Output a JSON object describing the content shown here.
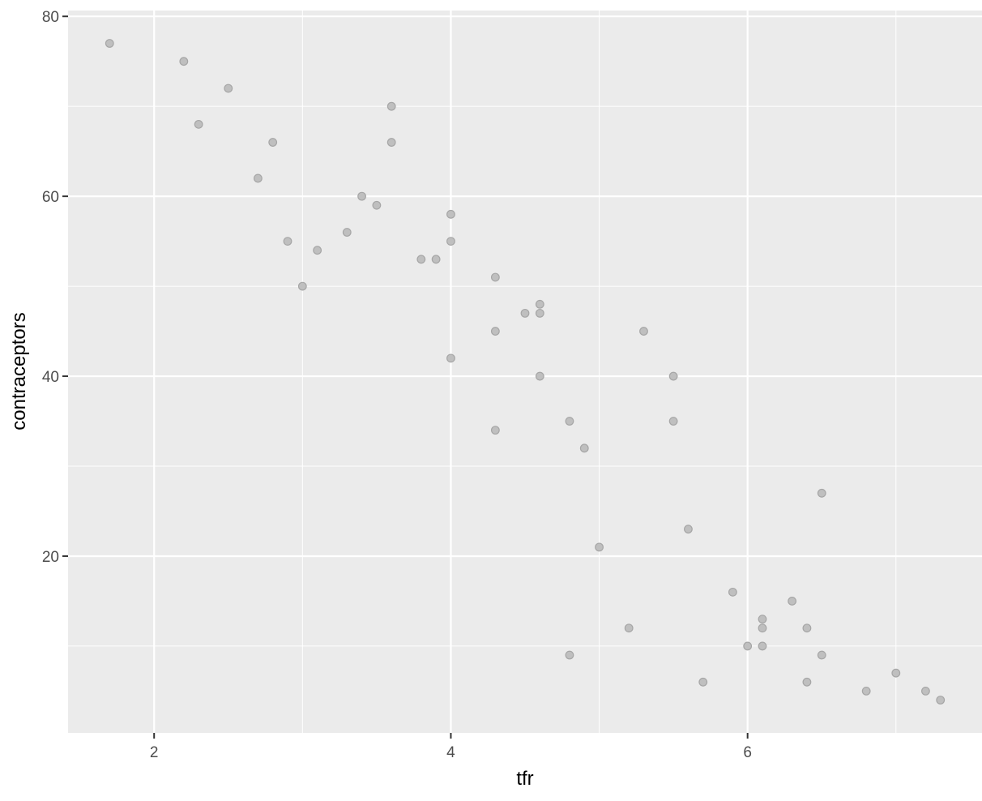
{
  "chart_data": {
    "type": "scatter",
    "title": "",
    "xlabel": "tfr",
    "ylabel": "contraceptors",
    "xlim": [
      1.42,
      7.58
    ],
    "ylim": [
      0.35,
      80.65
    ],
    "x_ticks": [
      2,
      4,
      6
    ],
    "y_ticks": [
      20,
      40,
      60,
      80
    ],
    "x_tick_labels": [
      "2",
      "4",
      "6"
    ],
    "y_tick_labels": [
      "20",
      "40",
      "60",
      "80"
    ],
    "grid": true,
    "panel_background": "#ebebeb",
    "point_color": "#bfbfbf",
    "point_stroke": "#a6a6a6",
    "points": [
      [
        1.7,
        77
      ],
      [
        2.2,
        75
      ],
      [
        2.5,
        72
      ],
      [
        2.3,
        68
      ],
      [
        2.8,
        66
      ],
      [
        2.7,
        62
      ],
      [
        2.9,
        55
      ],
      [
        3.1,
        54
      ],
      [
        3.0,
        50
      ],
      [
        3.3,
        56
      ],
      [
        3.4,
        60
      ],
      [
        3.5,
        59
      ],
      [
        3.6,
        70
      ],
      [
        3.6,
        66
      ],
      [
        3.8,
        53
      ],
      [
        3.9,
        53
      ],
      [
        4.0,
        58
      ],
      [
        4.0,
        55
      ],
      [
        4.0,
        42
      ],
      [
        4.3,
        51
      ],
      [
        4.3,
        45
      ],
      [
        4.3,
        34
      ],
      [
        4.5,
        47
      ],
      [
        4.6,
        48
      ],
      [
        4.6,
        47
      ],
      [
        4.6,
        40
      ],
      [
        4.8,
        35
      ],
      [
        4.8,
        9
      ],
      [
        4.9,
        32
      ],
      [
        5.0,
        21
      ],
      [
        5.2,
        12
      ],
      [
        5.3,
        45
      ],
      [
        5.5,
        40
      ],
      [
        5.5,
        35
      ],
      [
        5.6,
        23
      ],
      [
        5.7,
        6
      ],
      [
        5.9,
        16
      ],
      [
        6.0,
        10
      ],
      [
        6.1,
        13
      ],
      [
        6.1,
        12
      ],
      [
        6.1,
        10
      ],
      [
        6.3,
        15
      ],
      [
        6.4,
        12
      ],
      [
        6.4,
        6
      ],
      [
        6.5,
        27
      ],
      [
        6.5,
        9
      ],
      [
        6.8,
        5
      ],
      [
        7.0,
        7
      ],
      [
        7.2,
        5
      ],
      [
        7.3,
        4
      ]
    ]
  }
}
